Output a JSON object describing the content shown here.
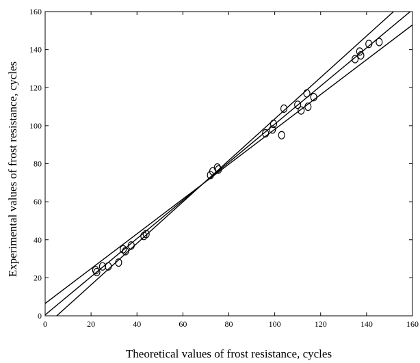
{
  "chart_data": {
    "type": "scatter",
    "title": "",
    "xlabel": "Theoretical values of frost resistance, cycles",
    "ylabel": "Experimental values of frost resistance, cycles",
    "xlim": [
      0,
      160
    ],
    "ylim": [
      0,
      160
    ],
    "xticks": [
      "0",
      "20",
      "40",
      "60",
      "80",
      "100",
      "120",
      "140",
      "160"
    ],
    "yticks": [
      "0",
      "20",
      "40",
      "60",
      "80",
      "100",
      "120",
      "140",
      "160"
    ],
    "grid": false,
    "marker": "open-circle",
    "points": [
      {
        "x": 22,
        "y": 24
      },
      {
        "x": 22.5,
        "y": 23
      },
      {
        "x": 25,
        "y": 26
      },
      {
        "x": 27.5,
        "y": 26
      },
      {
        "x": 32,
        "y": 28
      },
      {
        "x": 34,
        "y": 35
      },
      {
        "x": 35,
        "y": 34
      },
      {
        "x": 37.5,
        "y": 37
      },
      {
        "x": 43,
        "y": 42
      },
      {
        "x": 44,
        "y": 43
      },
      {
        "x": 72,
        "y": 74
      },
      {
        "x": 73,
        "y": 76
      },
      {
        "x": 75,
        "y": 78
      },
      {
        "x": 75.5,
        "y": 77
      },
      {
        "x": 96,
        "y": 96
      },
      {
        "x": 99,
        "y": 98
      },
      {
        "x": 99.5,
        "y": 101
      },
      {
        "x": 103,
        "y": 95
      },
      {
        "x": 104,
        "y": 109
      },
      {
        "x": 110,
        "y": 111
      },
      {
        "x": 111.5,
        "y": 108
      },
      {
        "x": 114,
        "y": 117
      },
      {
        "x": 114.5,
        "y": 110
      },
      {
        "x": 117,
        "y": 115
      },
      {
        "x": 135,
        "y": 135
      },
      {
        "x": 137,
        "y": 139
      },
      {
        "x": 137.5,
        "y": 137
      },
      {
        "x": 141,
        "y": 143
      },
      {
        "x": 145.5,
        "y": 144
      }
    ],
    "lines": [
      {
        "x": [
          0,
          160
        ],
        "y": [
          0.5,
          161
        ]
      },
      {
        "x": [
          0,
          160
        ],
        "y": [
          6.5,
          153
        ]
      },
      {
        "x": [
          0,
          160
        ],
        "y": [
          -5.5,
          169
        ]
      }
    ]
  }
}
